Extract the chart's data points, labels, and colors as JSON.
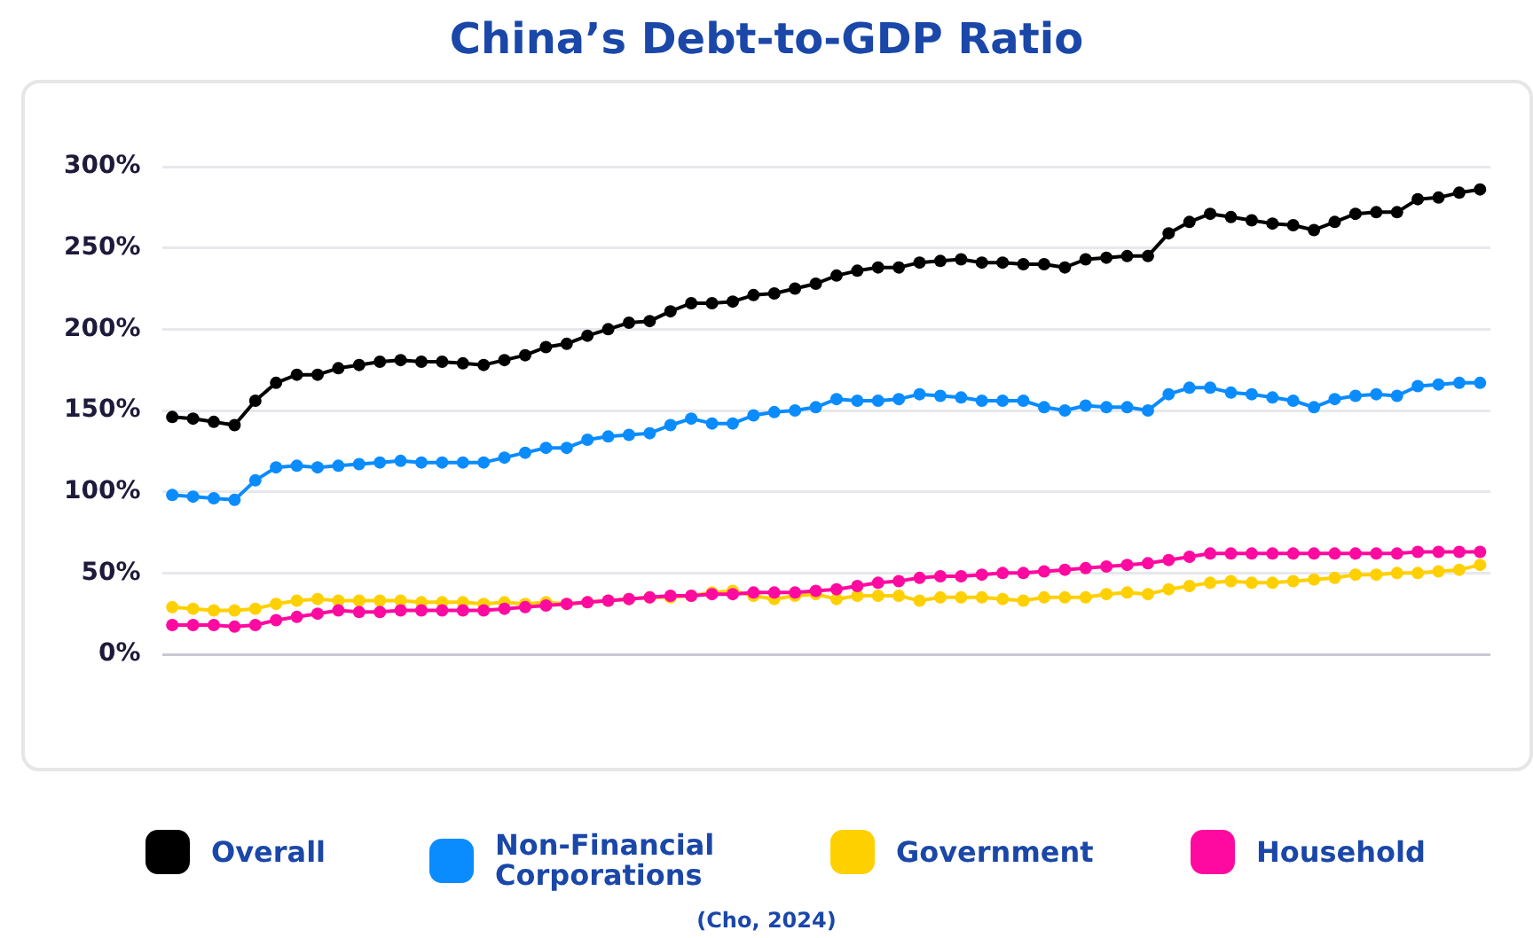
{
  "chart_data": {
    "type": "line",
    "title": "China’s Debt-to-GDP Ratio",
    "categories": [
      null,
      null,
      null,
      null,
      null,
      null,
      null,
      null,
      null,
      null,
      null,
      null,
      null,
      null,
      null,
      null,
      null,
      null,
      null,
      null,
      null,
      null,
      null,
      null,
      null,
      null,
      null,
      null,
      null,
      null,
      null,
      null,
      null,
      null,
      null,
      null,
      null,
      null,
      null,
      null,
      null,
      null,
      null,
      null,
      null,
      null,
      null,
      null,
      null,
      null,
      null,
      null,
      null,
      null,
      null,
      null,
      null,
      null,
      null,
      null,
      null,
      null,
      null,
      null
    ],
    "series": [
      {
        "name": "Overall",
        "color": "#000000",
        "values": [
          146,
          145,
          143,
          141,
          156,
          167,
          172,
          172,
          176,
          178,
          180,
          181,
          180,
          180,
          179,
          178,
          181,
          184,
          189,
          191,
          196,
          200,
          204,
          205,
          211,
          216,
          216,
          217,
          221,
          222,
          225,
          228,
          233,
          236,
          238,
          238,
          241,
          242,
          243,
          241,
          241,
          240,
          240,
          238,
          243,
          244,
          245,
          245,
          259,
          266,
          271,
          269,
          267,
          265,
          264,
          261,
          266,
          271,
          272,
          272,
          280,
          281,
          284,
          286
        ]
      },
      {
        "name": "Non-Financial Corporations",
        "color": "#0a8cff",
        "values": [
          98,
          97,
          96,
          95,
          107,
          115,
          116,
          115,
          116,
          117,
          118,
          119,
          118,
          118,
          118,
          118,
          121,
          124,
          127,
          127,
          132,
          134,
          135,
          136,
          141,
          145,
          142,
          142,
          147,
          149,
          150,
          152,
          157,
          156,
          156,
          157,
          160,
          159,
          158,
          156,
          156,
          156,
          152,
          150,
          153,
          152,
          152,
          150,
          160,
          164,
          164,
          161,
          160,
          158,
          156,
          152,
          157,
          159,
          160,
          159,
          165,
          166,
          167,
          167
        ]
      },
      {
        "name": "Government",
        "color": "#ffd000",
        "values": [
          29,
          28,
          27,
          27,
          28,
          31,
          33,
          34,
          33,
          33,
          33,
          33,
          32,
          32,
          32,
          31,
          32,
          31,
          32,
          31,
          32,
          33,
          34,
          35,
          35,
          36,
          38,
          39,
          36,
          34,
          36,
          37,
          34,
          36,
          36,
          36,
          33,
          35,
          35,
          35,
          34,
          33,
          35,
          35,
          35,
          37,
          38,
          37,
          40,
          42,
          44,
          45,
          44,
          44,
          45,
          46,
          47,
          49,
          49,
          50,
          50,
          51,
          52,
          55
        ]
      },
      {
        "name": "Household",
        "color": "#ff0aa0",
        "values": [
          18,
          18,
          18,
          17,
          18,
          21,
          23,
          25,
          27,
          26,
          26,
          27,
          27,
          27,
          27,
          27,
          28,
          29,
          30,
          31,
          32,
          33,
          34,
          35,
          36,
          36,
          37,
          37,
          38,
          38,
          38,
          39,
          40,
          42,
          44,
          45,
          47,
          48,
          48,
          49,
          50,
          50,
          51,
          52,
          53,
          54,
          55,
          56,
          58,
          60,
          62,
          62,
          62,
          62,
          62,
          62,
          62,
          62,
          62,
          62,
          63,
          63,
          63,
          63
        ]
      }
    ],
    "ylim": [
      0,
      300
    ],
    "yticks": [
      {
        "value": 0,
        "label": "0%"
      },
      {
        "value": 50,
        "label": "50%"
      },
      {
        "value": 100,
        "label": "100%"
      },
      {
        "value": 150,
        "label": "150%"
      },
      {
        "value": 200,
        "label": "200%"
      },
      {
        "value": 250,
        "label": "250%"
      },
      {
        "value": 300,
        "label": "300%"
      }
    ],
    "grid": "y",
    "legend": "bottom",
    "marker": "circle",
    "tick_labels": "y",
    "annotations": [
      "(Cho, 2024)"
    ]
  }
}
